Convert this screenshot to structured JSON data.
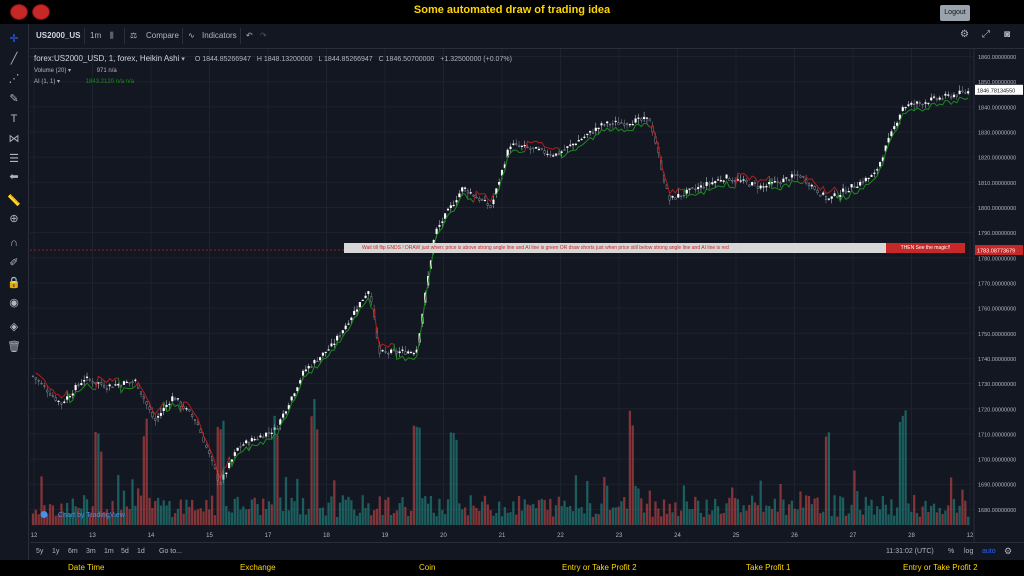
{
  "page": {
    "title": "Some automated draw of trading idea",
    "logout_label": "Logout"
  },
  "toolbar": {
    "symbol": "US2000_US",
    "interval": "1m",
    "compare_label": "Compare",
    "indicators_label": "Indicators"
  },
  "legend": {
    "main": "forex:US2000_USD, 1, forex, Heikin Ashi",
    "open": "O 1844.85266947",
    "high": "H 1848.13200000",
    "low": "L 1844.85266947",
    "close": "C 1846.50700000",
    "change": "+1.32500000 (+0.07%)",
    "volume_label": "Volume (20)",
    "volume_values": "971  n/a",
    "ai_label": "AI (1, 1)",
    "ai_values": "1843.2120  n/a  n/a"
  },
  "banner": {
    "text": "Wait till flip ENDS  !   DRAW just when:  price is above strong angle line and AI line is green        OR        draw shorts just when price still below strong angle line and AI line is red",
    "end": "THEN See the magic!!"
  },
  "watermark": "Chart by TradingView",
  "bottom": {
    "ranges": [
      "5y",
      "1y",
      "6m",
      "3m",
      "1m",
      "5d",
      "1d"
    ],
    "goto": "Go to...",
    "time": "11:31:02 (UTC)",
    "percent": "%",
    "log": "log",
    "auto": "auto"
  },
  "footer": {
    "labels": [
      "Date Time",
      "Exchange",
      "Coin",
      "Entry or Take Profit 2",
      "Take Profit 1",
      "Entry or Take Profit 2"
    ]
  },
  "colors": {
    "up": "#26a69a",
    "down": "#ef5350",
    "ai_green": "#1b8a1b",
    "ai_red": "#b71c1c",
    "accent": "#ffd700"
  },
  "chart_data": {
    "type": "candlestick",
    "x_ticks": [
      "12",
      "13",
      "14",
      "15",
      "17",
      "18",
      "19",
      "20",
      "21",
      "22",
      "23",
      "24",
      "25",
      "26",
      "27",
      "28",
      "12"
    ],
    "y_ticks": [
      1680,
      1690,
      1700,
      1710,
      1720,
      1730,
      1740,
      1750,
      1760,
      1770,
      1780,
      1790,
      1800,
      1810,
      1820,
      1830,
      1840,
      1850,
      1860
    ],
    "ylim": [
      1673,
      1863
    ],
    "current_price_label": "1846.78134550",
    "marker_price_label": "1783.08773679",
    "series_path": [
      [
        0,
        1733
      ],
      [
        0.03,
        1722
      ],
      [
        0.055,
        1732
      ],
      [
        0.08,
        1729
      ],
      [
        0.11,
        1731
      ],
      [
        0.13,
        1715
      ],
      [
        0.15,
        1725
      ],
      [
        0.175,
        1715
      ],
      [
        0.2,
        1690
      ],
      [
        0.22,
        1705
      ],
      [
        0.26,
        1712
      ],
      [
        0.29,
        1735
      ],
      [
        0.32,
        1745
      ],
      [
        0.36,
        1768
      ],
      [
        0.37,
        1742
      ],
      [
        0.41,
        1743
      ],
      [
        0.43,
        1790
      ],
      [
        0.46,
        1808
      ],
      [
        0.49,
        1800
      ],
      [
        0.51,
        1825
      ],
      [
        0.56,
        1821
      ],
      [
        0.61,
        1833
      ],
      [
        0.66,
        1835
      ],
      [
        0.68,
        1803
      ],
      [
        0.74,
        1812
      ],
      [
        0.78,
        1808
      ],
      [
        0.82,
        1813
      ],
      [
        0.85,
        1803
      ],
      [
        0.9,
        1813
      ],
      [
        0.93,
        1840
      ],
      [
        1.0,
        1846
      ]
    ],
    "volume_spikes": [
      0.07,
      0.12,
      0.2,
      0.26,
      0.3,
      0.41,
      0.45,
      0.64,
      0.85,
      0.93
    ]
  }
}
